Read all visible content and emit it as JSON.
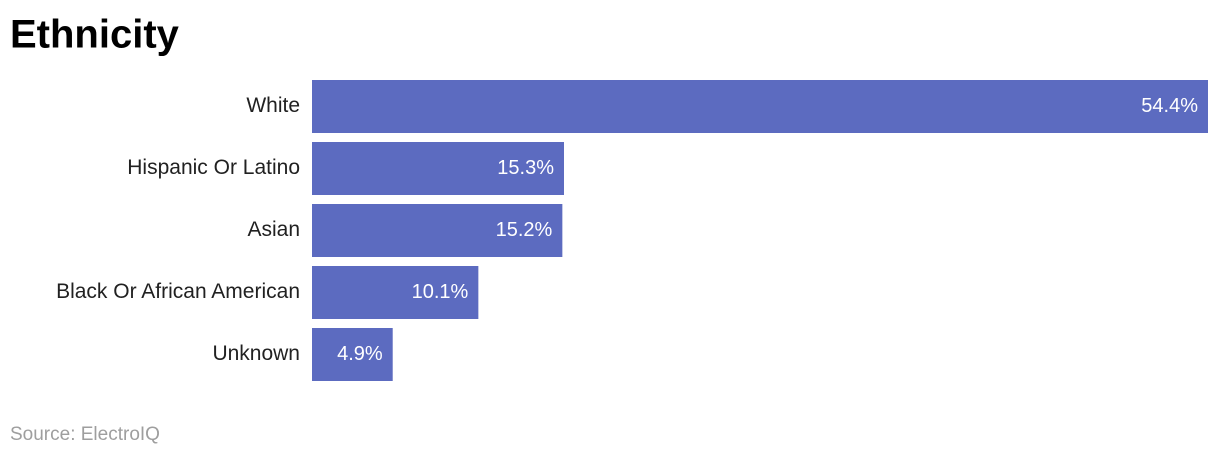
{
  "chart_data": {
    "type": "barh",
    "title": "Ethnicity",
    "categories": [
      "White",
      "Hispanic Or Latino",
      "Asian",
      "Black Or African American",
      "Unknown"
    ],
    "values": [
      54.4,
      15.3,
      15.2,
      10.1,
      4.9
    ],
    "value_labels": [
      "54.4%",
      "15.3%",
      "15.2%",
      "10.1%",
      "4.9%"
    ],
    "color": "#5c6bc0",
    "source": "Source: ElectroIQ"
  }
}
